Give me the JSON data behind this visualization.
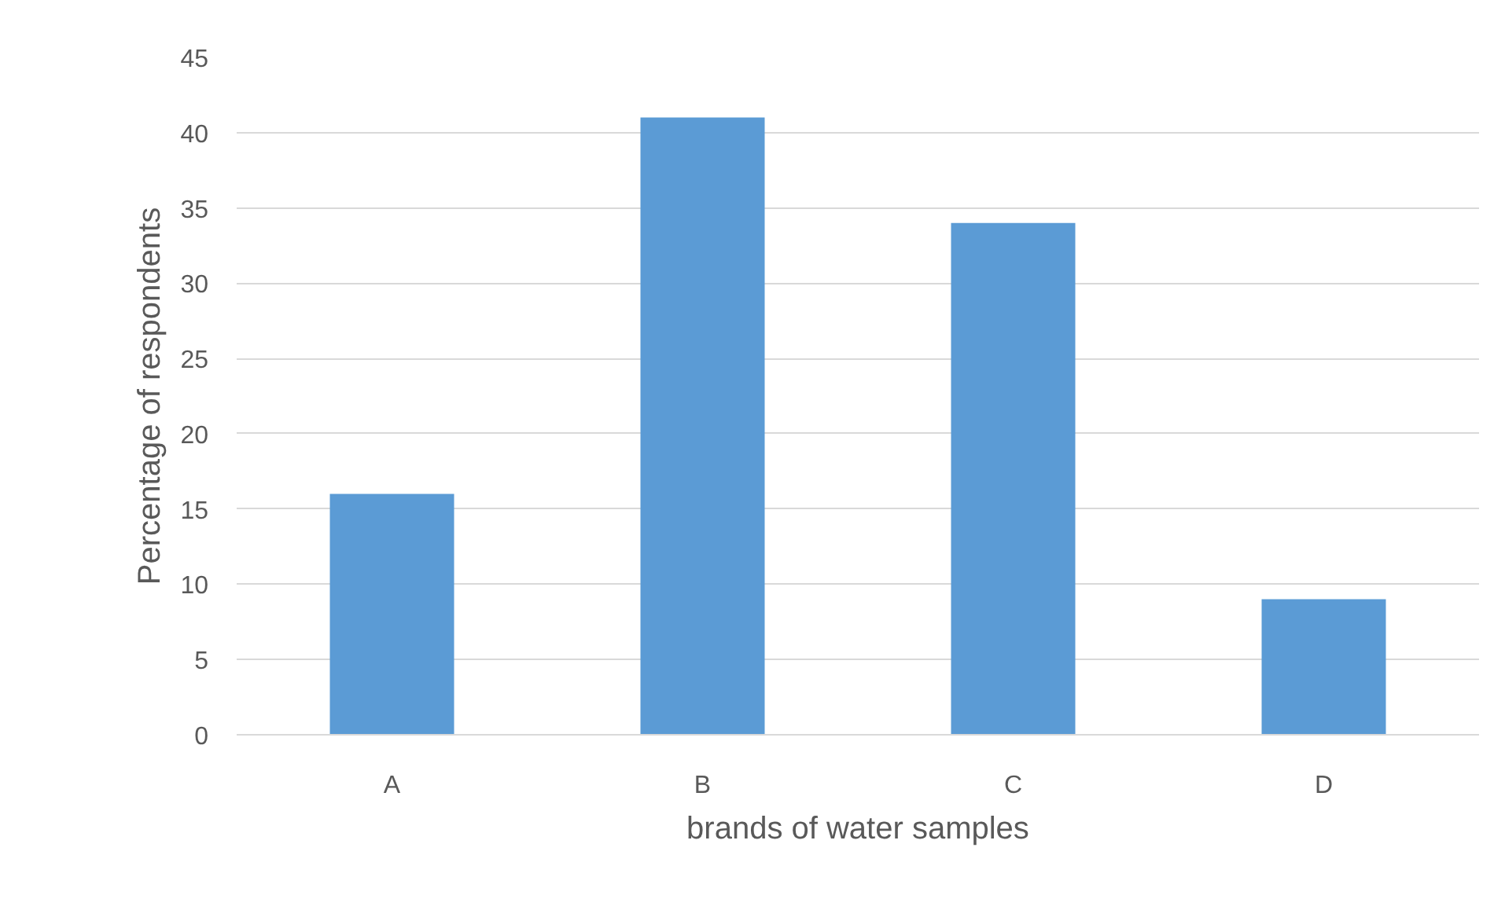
{
  "chart_data": {
    "type": "bar",
    "xlabel": "brands of water samples",
    "ylabel": "Percentage of respondents",
    "categories": [
      "A",
      "B",
      "C",
      "D"
    ],
    "values": [
      16,
      41,
      34,
      9
    ],
    "color": "#5b9bd5",
    "ylim": [
      0,
      45
    ],
    "yticks": [
      0,
      5,
      10,
      15,
      20,
      25,
      30,
      35,
      40,
      45
    ],
    "grid": "y"
  }
}
